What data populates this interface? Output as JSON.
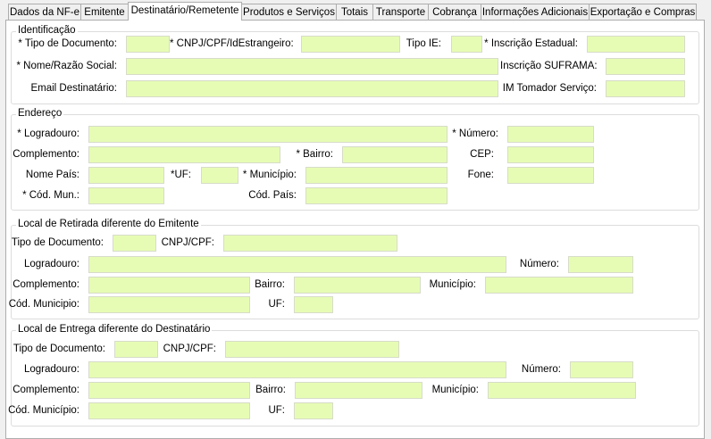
{
  "tabs": [
    "Dados da NF-e",
    "Emitente",
    "Destinatário/Remetente",
    "Produtos e Serviços",
    "Totais",
    "Transporte",
    "Cobrança",
    "Informações Adicionais",
    "Exportação e Compras"
  ],
  "active_tab": "Destinatário/Remetente",
  "field_color": "#e6fcb4",
  "identificacao": {
    "title": "Identificação",
    "tipo_doc": "* Tipo de Documento:",
    "cnpj": "* CNPJ/CPF/IdEstrangeiro:",
    "tipo_ie": "Tipo IE:",
    "ie": "* Inscrição Estadual:",
    "nome": "* Nome/Razão Social:",
    "suframa": "Inscrição SUFRAMA:",
    "email": "Email Destinatário:",
    "im": "IM Tomador Serviço:"
  },
  "endereco": {
    "title": "Endereço",
    "logradouro": "* Logradouro:",
    "numero": "* Número:",
    "complemento": "Complemento:",
    "bairro": "* Bairro:",
    "cep": "CEP:",
    "nome_pais": "Nome País:",
    "uf": "*UF:",
    "municipio": "* Município:",
    "fone": "Fone:",
    "cod_mun": "* Cód. Mun.:",
    "cod_pais": "Cód. País:"
  },
  "retirada": {
    "title": "Local de Retirada diferente do Emitente",
    "tipo_doc": "Tipo de Documento:",
    "cnpj": "CNPJ/CPF:",
    "logradouro": "Logradouro:",
    "numero": "Número:",
    "complemento": "Complemento:",
    "bairro": "Bairro:",
    "municipio": "Município:",
    "cod_mun": "Cód. Municipio:",
    "uf": "UF:"
  },
  "entrega": {
    "title": "Local de Entrega diferente do Destinatário",
    "tipo_doc": "Tipo de Documento:",
    "cnpj": "CNPJ/CPF:",
    "logradouro": "Logradouro:",
    "numero": "Número:",
    "complemento": "Complemento:",
    "bairro": "Bairro:",
    "municipio": "Município:",
    "cod_mun": "Cód. Município:",
    "uf": "UF:"
  }
}
